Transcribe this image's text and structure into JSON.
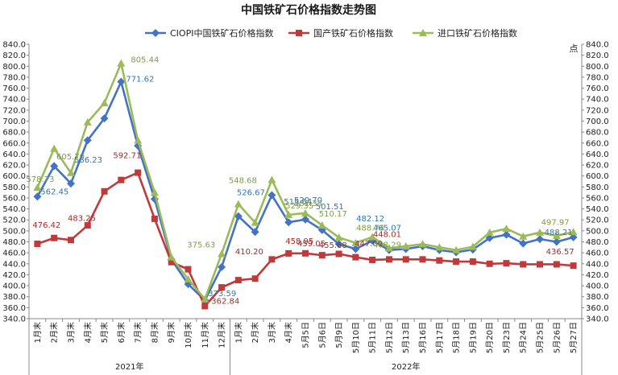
{
  "chart_data": {
    "type": "line",
    "title": "中国铁矿石价格指数走势图",
    "unit_label": "点",
    "ylim": [
      340,
      840
    ],
    "ytick_step": 20,
    "grid": false,
    "legend_position": "top",
    "categories": [
      "1月末",
      "2月末",
      "3月末",
      "4月末",
      "5月末",
      "6月末",
      "7月末",
      "8月末",
      "9月末",
      "10月末",
      "11月末",
      "12月末",
      "1月末",
      "2月末",
      "3月末",
      "4月末",
      "5月5日",
      "5月6日",
      "5月9日",
      "5月10日",
      "5月11日",
      "5月12日",
      "5月13日",
      "5月16日",
      "5月17日",
      "5月18日",
      "5月19日",
      "5月20日",
      "5月23日",
      "5月24日",
      "5月25日",
      "5月26日",
      "5月27日"
    ],
    "year_groups": [
      {
        "label": "2021年",
        "count": 12
      },
      {
        "label": "2022年",
        "count": 21
      }
    ],
    "series": [
      {
        "name": "CIOPI中国铁矿石价格指数",
        "color": "#4472C4",
        "label_color": "#2E75B6",
        "marker": "diamond",
        "values": [
          562.45,
          618,
          586.23,
          665,
          705,
          771.62,
          655,
          558,
          448,
          403,
          373.59,
          434,
          526.67,
          498,
          565,
          515.64,
          520.7,
          501.51,
          476,
          467,
          482.12,
          465.07,
          467,
          472,
          465,
          461,
          466,
          487,
          493,
          477,
          485,
          480,
          488.21
        ],
        "labels": [
          {
            "i": 0,
            "text": "562.45",
            "dx": 4,
            "dy": -3
          },
          {
            "i": 2,
            "text": "586.23",
            "dx": 4,
            "dy": -26
          },
          {
            "i": 5,
            "text": "771.62",
            "dx": 6,
            "dy": 0
          },
          {
            "i": 10,
            "text": "373.59",
            "dx": 4,
            "dy": -5
          },
          {
            "i": 12,
            "text": "526.67",
            "dx": -2,
            "dy": -26
          },
          {
            "i": 15,
            "text": "515.64",
            "dx": -6,
            "dy": -22
          },
          {
            "i": 16,
            "text": "520.70",
            "dx": -14,
            "dy": -21
          },
          {
            "i": 17,
            "text": "501.51",
            "dx": -8,
            "dy": -26
          },
          {
            "i": 20,
            "text": "482.12",
            "dx": -20,
            "dy": -24
          },
          {
            "i": 21,
            "text": "465.07",
            "dx": -20,
            "dy": -24
          },
          {
            "i": 32,
            "text": "488.21",
            "dx": -36,
            "dy": -3
          }
        ]
      },
      {
        "name": "国产铁矿石价格指数",
        "color": "#C0393B",
        "label_color": "#A52A2A",
        "marker": "square",
        "values": [
          476.42,
          487,
          483.25,
          510,
          572,
          592.71,
          606,
          522,
          443,
          430,
          362.84,
          397,
          410.2,
          413,
          448,
          458.95,
          459.05,
          455.68,
          458,
          452,
          447.09,
          448.01,
          448,
          448,
          446,
          444,
          444,
          440,
          441,
          439,
          439,
          439,
          436.57
        ],
        "labels": [
          {
            "i": 0,
            "text": "476.42",
            "dx": -6,
            "dy": -20
          },
          {
            "i": 2,
            "text": "483.25",
            "dx": -4,
            "dy": -24
          },
          {
            "i": 5,
            "text": "592.71",
            "dx": -10,
            "dy": -27
          },
          {
            "i": 10,
            "text": "362.84",
            "dx": 8,
            "dy": -3
          },
          {
            "i": 12,
            "text": "410.20",
            "dx": -4,
            "dy": -32
          },
          {
            "i": 15,
            "text": "458.95",
            "dx": -4,
            "dy": -12
          },
          {
            "i": 16,
            "text": "459.05",
            "dx": -10,
            "dy": -9
          },
          {
            "i": 17,
            "text": "455.68",
            "dx": -4,
            "dy": -9
          },
          {
            "i": 20,
            "text": "447.09",
            "dx": -22,
            "dy": -17
          },
          {
            "i": 21,
            "text": "448.01",
            "dx": -20,
            "dy": -28
          },
          {
            "i": 32,
            "text": "436.57",
            "dx": -34,
            "dy": -14
          }
        ]
      },
      {
        "name": "进口铁矿石价格指数",
        "color": "#9BBB59",
        "label_color": "#7F9F3F",
        "marker": "triangle",
        "values": [
          578.73,
          650,
          605.7,
          698,
          733,
          805.44,
          665,
          570,
          452,
          412,
          375.63,
          458,
          548.68,
          515,
          593,
          529.35,
          532.35,
          510.17,
          488,
          478,
          488.74,
          468.29,
          472,
          476,
          470,
          465,
          471,
          497,
          504,
          490,
          497,
          491,
          497.97
        ],
        "labels": [
          {
            "i": 0,
            "text": "578.73",
            "dx": -14,
            "dy": -7
          },
          {
            "i": 2,
            "text": "605.70",
            "dx": -18,
            "dy": -17
          },
          {
            "i": 5,
            "text": "805.44",
            "dx": 12,
            "dy": -1
          },
          {
            "i": 10,
            "text": "375.63",
            "dx": -22,
            "dy": -64
          },
          {
            "i": 12,
            "text": "548.68",
            "dx": -12,
            "dy": -26
          },
          {
            "i": 15,
            "text": "529.35",
            "dx": -4,
            "dy": -8
          },
          {
            "i": 16,
            "text": "532.35",
            "dx": -14,
            "dy": -9
          },
          {
            "i": 17,
            "text": "510.17",
            "dx": -4,
            "dy": -11
          },
          {
            "i": 20,
            "text": "488.74",
            "dx": -20,
            "dy": -8
          },
          {
            "i": 21,
            "text": "468.29",
            "dx": -20,
            "dy": -1
          },
          {
            "i": 32,
            "text": "497.97",
            "dx": -40,
            "dy": -9
          }
        ]
      }
    ]
  }
}
